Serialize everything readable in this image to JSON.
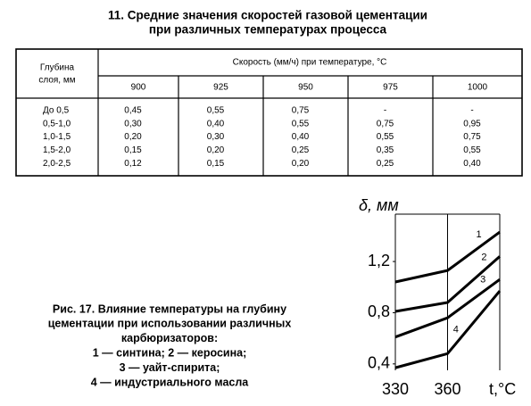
{
  "title": [
    "11. Средние значения скоростей газовой цементации",
    "при различных температурах процесса"
  ],
  "table": {
    "depth_header": [
      "Глубина",
      "слоя, мм"
    ],
    "speed_header": "Скорость (мм/ч) при температуре, °С",
    "temps": [
      "900",
      "925",
      "950",
      "975",
      "1000"
    ],
    "rows": [
      [
        "До 0,5",
        "0,45",
        "0,55",
        "0,75",
        "-",
        "-"
      ],
      [
        "0,5-1,0",
        "0,30",
        "0,40",
        "0,55",
        "0,75",
        "0,95"
      ],
      [
        "1,0-1,5",
        "0,20",
        "0,30",
        "0,40",
        "0,55",
        "0,75"
      ],
      [
        "1,5-2,0",
        "0,15",
        "0,20",
        "0,25",
        "0,35",
        "0,55"
      ],
      [
        "2,0-2,5",
        "0,12",
        "0,15",
        "0,20",
        "0,25",
        "0,40"
      ]
    ]
  },
  "caption": [
    "Рис. 17. Влияние температуры на глубину",
    "цементации при использовании различных",
    "карбюризаторов:",
    "1 — синтина; 2 — керосина;",
    "3 — уайт-спирита;",
    "4 — индустриального масла"
  ],
  "chart_data": {
    "type": "line",
    "y_label": "δ, мм",
    "x_label": "t,°С",
    "x": [
      330,
      360,
      390
    ],
    "xlim": [
      330,
      390
    ],
    "xticks": [
      330,
      360
    ],
    "ylim": [
      0.35,
      1.57
    ],
    "yticks": [
      {
        "value": 0.4,
        "label": "0,4"
      },
      {
        "value": 0.8,
        "label": "0,8"
      },
      {
        "value": 1.2,
        "label": "1,2"
      }
    ],
    "series": [
      {
        "name": "1",
        "color": "#000000",
        "values": [
          1.04,
          1.13,
          1.43
        ]
      },
      {
        "name": "2",
        "color": "#000000",
        "values": [
          0.81,
          0.88,
          1.24
        ]
      },
      {
        "name": "3",
        "color": "#000000",
        "values": [
          0.61,
          0.76,
          1.06
        ]
      },
      {
        "name": "4",
        "color": "#000000",
        "values": [
          0.37,
          0.48,
          0.97
        ]
      }
    ]
  }
}
